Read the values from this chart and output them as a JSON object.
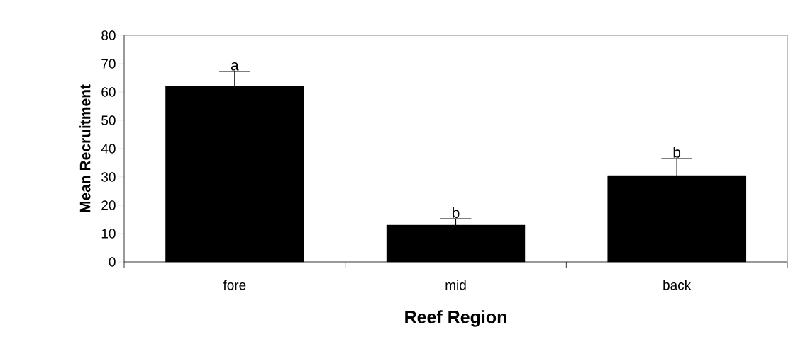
{
  "chart_data": {
    "type": "bar",
    "xlabel": "Reef Region",
    "ylabel": "Mean Recruitment",
    "categories": [
      "fore",
      "mid",
      "back"
    ],
    "values": [
      62,
      13,
      30.5
    ],
    "color": "#000000",
    "errors": [
      [
        62,
        67.3
      ],
      [
        13,
        15.2
      ],
      [
        30.5,
        36.5
      ]
    ],
    "ylim": [
      0,
      80
    ],
    "yticks": [
      0,
      10,
      20,
      30,
      40,
      50,
      60,
      70,
      80
    ],
    "annotations": [
      {
        "text": "a",
        "x": "fore",
        "y": 67.3
      },
      {
        "text": "b",
        "x": "mid",
        "y": 15.2
      },
      {
        "text": "b",
        "x": "back",
        "y": 36.5
      }
    ]
  }
}
